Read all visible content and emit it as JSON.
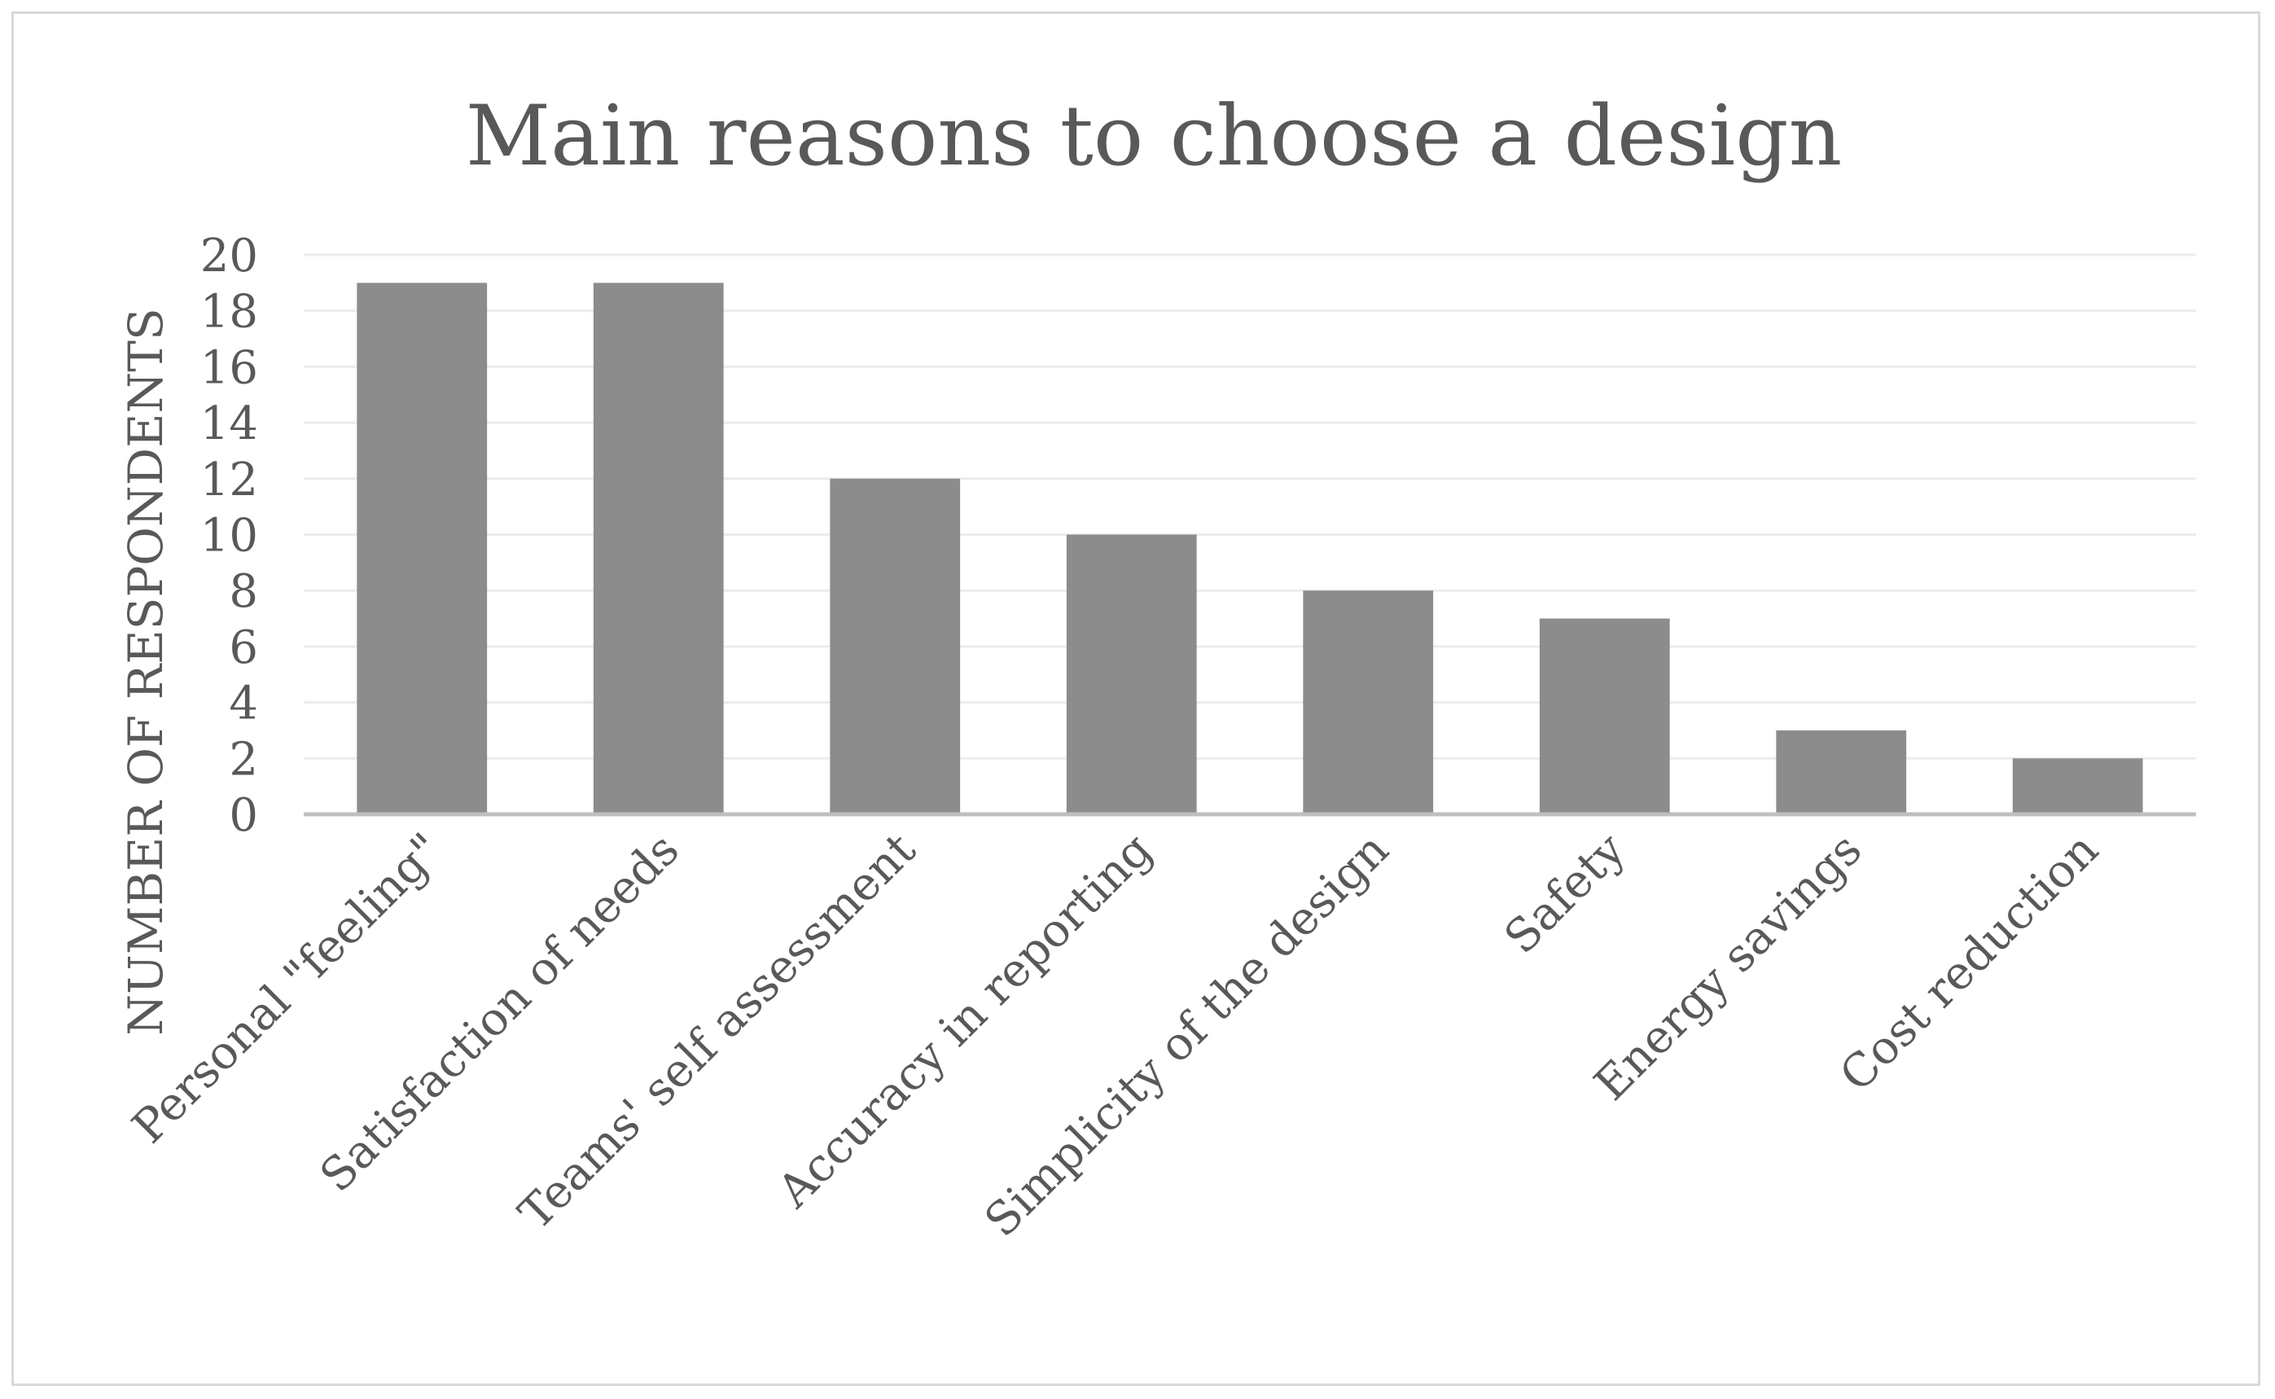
{
  "chart_data": {
    "type": "bar",
    "title": "Main reasons to choose a design",
    "xlabel": "",
    "ylabel": "NUMBER OF RESPONDENTS",
    "categories": [
      "Personal  \"feeling\"",
      "Satisfaction  of needs",
      "Teams' self assessment",
      "Accuracy  in reporting",
      "Simplicity  of the design",
      "Safety",
      "Energy savings",
      "Cost  reduction"
    ],
    "values": [
      19,
      19,
      12,
      10,
      8,
      7,
      3,
      2
    ],
    "ylim": [
      0,
      20
    ],
    "yticks": [
      "0",
      "2",
      "4",
      "6",
      "8",
      "10",
      "12",
      "14",
      "16",
      "18",
      "20"
    ],
    "grid": true,
    "bar_color": "#8c8c8c",
    "grid_color": "#ececec",
    "axis_color": "#bfbfbf"
  }
}
